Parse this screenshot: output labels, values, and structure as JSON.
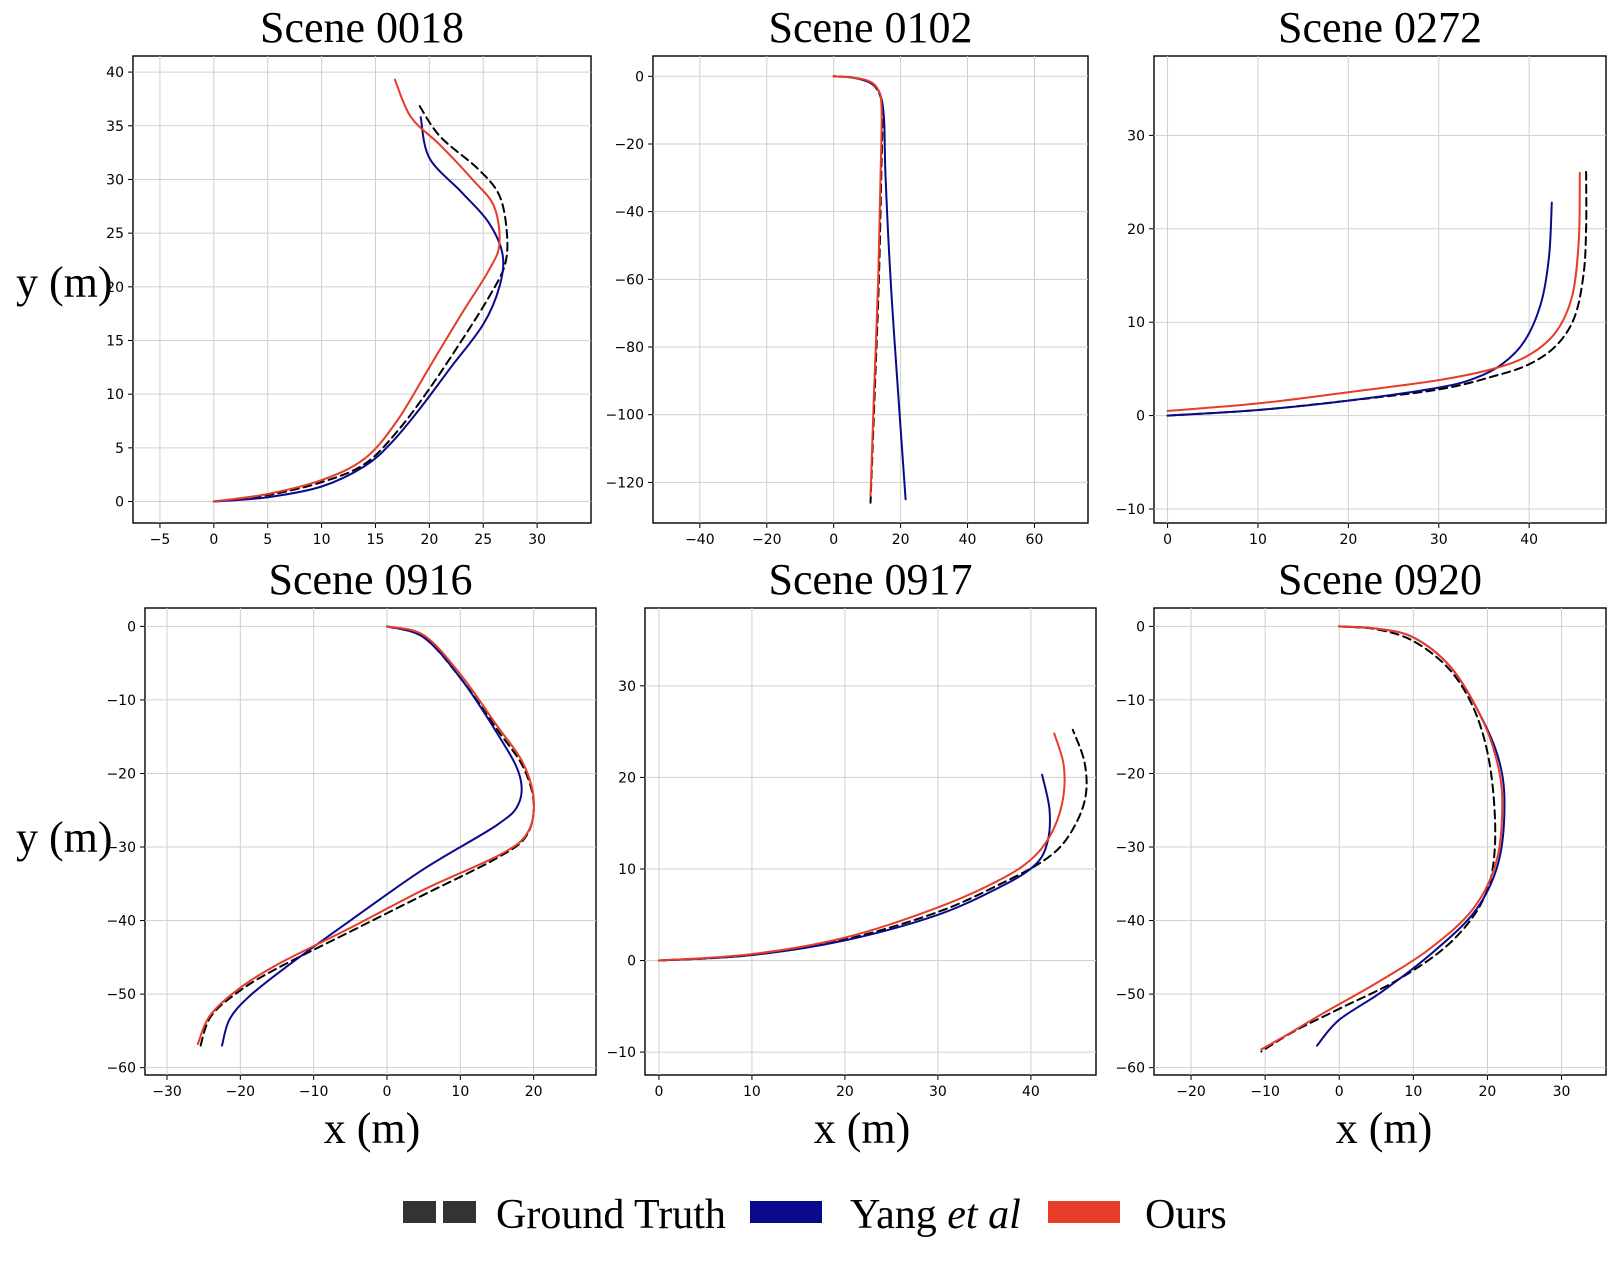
{
  "figure": {
    "xlabel": "x (m)",
    "ylabel": "y (m)",
    "legend": {
      "placement": "bottom-center",
      "items": [
        {
          "label": "Ground Truth",
          "style": "dashed",
          "color": "#000000"
        },
        {
          "label_main": "Yang ",
          "label_italic": "et al",
          "style": "solid",
          "color": "#0a0a8c"
        },
        {
          "label": "Ours",
          "style": "solid",
          "color": "#e63c28"
        }
      ]
    },
    "colors": {
      "ground_truth": "#000000",
      "yang": "#0a0a8c",
      "ours": "#e63c28",
      "grid": "#cfcfcf"
    }
  },
  "chart_data": [
    {
      "type": "line",
      "title": "Scene 0018",
      "xlim": [
        -7.5,
        35
      ],
      "ylim": [
        -2,
        41.5
      ],
      "xticks": [
        -5,
        0,
        5,
        10,
        15,
        20,
        25,
        30
      ],
      "yticks": [
        0,
        5,
        10,
        15,
        20,
        25,
        30,
        35,
        40
      ],
      "grid": true,
      "series": [
        {
          "key": "ground_truth",
          "points": [
            [
              0,
              0
            ],
            [
              5,
              0.6
            ],
            [
              10,
              1.8
            ],
            [
              14,
              3.5
            ],
            [
              17,
              6.5
            ],
            [
              20,
              10.5
            ],
            [
              23,
              15
            ],
            [
              25.5,
              19
            ],
            [
              27,
              22
            ],
            [
              27.2,
              25
            ],
            [
              26.5,
              28.5
            ],
            [
              24.5,
              31
            ],
            [
              21,
              34
            ],
            [
              19,
              37
            ]
          ]
        },
        {
          "key": "yang",
          "points": [
            [
              0,
              0
            ],
            [
              5,
              0.4
            ],
            [
              10,
              1.4
            ],
            [
              14,
              3.3
            ],
            [
              16.5,
              5.5
            ],
            [
              19,
              8.5
            ],
            [
              22,
              12.5
            ],
            [
              25,
              16.5
            ],
            [
              26.5,
              20
            ],
            [
              26.8,
              23
            ],
            [
              25.5,
              26
            ],
            [
              23,
              28.8
            ],
            [
              20,
              32
            ],
            [
              19.2,
              35.8
            ]
          ]
        },
        {
          "key": "ours",
          "points": [
            [
              0,
              0
            ],
            [
              5,
              0.7
            ],
            [
              10,
              2
            ],
            [
              14,
              4
            ],
            [
              17,
              7.5
            ],
            [
              20,
              12.5
            ],
            [
              23,
              17.5
            ],
            [
              25.5,
              21.5
            ],
            [
              26.5,
              24
            ],
            [
              26,
              27.5
            ],
            [
              24,
              30
            ],
            [
              21,
              33.2
            ],
            [
              18.3,
              35.8
            ],
            [
              16.8,
              39.3
            ]
          ]
        }
      ]
    },
    {
      "type": "line",
      "title": "Scene 0102",
      "xlim": [
        -54,
        76
      ],
      "ylim": [
        -132,
        6
      ],
      "xticks": [
        -40,
        -20,
        0,
        20,
        40,
        60
      ],
      "yticks": [
        0,
        -20,
        -40,
        -60,
        -80,
        -100,
        -120
      ],
      "grid": true,
      "series": [
        {
          "key": "ground_truth",
          "points": [
            [
              0,
              0
            ],
            [
              5,
              -0.3
            ],
            [
              10,
              -1.5
            ],
            [
              13,
              -4
            ],
            [
              14.5,
              -10
            ],
            [
              14.2,
              -30
            ],
            [
              13.5,
              -60
            ],
            [
              12.2,
              -95
            ],
            [
              11,
              -126
            ]
          ]
        },
        {
          "key": "yang",
          "points": [
            [
              0,
              0
            ],
            [
              5,
              -0.3
            ],
            [
              10,
              -1.5
            ],
            [
              13.5,
              -4.5
            ],
            [
              15,
              -12
            ],
            [
              15.5,
              -30
            ],
            [
              17,
              -60
            ],
            [
              19,
              -90
            ],
            [
              21.5,
              -125
            ]
          ]
        },
        {
          "key": "ours",
          "points": [
            [
              0,
              0
            ],
            [
              5,
              -0.3
            ],
            [
              10,
              -1.2
            ],
            [
              13,
              -3.5
            ],
            [
              14.3,
              -9
            ],
            [
              14,
              -30
            ],
            [
              13.3,
              -60
            ],
            [
              12,
              -95
            ],
            [
              11,
              -124
            ]
          ]
        }
      ]
    },
    {
      "type": "line",
      "title": "Scene 0272",
      "xlim": [
        -1.5,
        48.5
      ],
      "ylim": [
        -11.5,
        38.5
      ],
      "xticks": [
        0,
        10,
        20,
        30,
        40
      ],
      "yticks": [
        -10,
        0,
        10,
        20,
        30
      ],
      "grid": true,
      "series": [
        {
          "key": "ground_truth",
          "points": [
            [
              0,
              0
            ],
            [
              10,
              0.6
            ],
            [
              20,
              1.6
            ],
            [
              30,
              2.8
            ],
            [
              36,
              4.2
            ],
            [
              40,
              5.5
            ],
            [
              43,
              7.5
            ],
            [
              45,
              10.5
            ],
            [
              46,
              15
            ],
            [
              46.3,
              20
            ],
            [
              46.3,
              26.3
            ]
          ]
        },
        {
          "key": "yang",
          "points": [
            [
              0,
              0
            ],
            [
              10,
              0.6
            ],
            [
              20,
              1.6
            ],
            [
              30,
              3
            ],
            [
              34,
              4
            ],
            [
              37,
              5.5
            ],
            [
              39.5,
              8
            ],
            [
              41.3,
              12
            ],
            [
              42.2,
              17
            ],
            [
              42.5,
              22.8
            ]
          ]
        },
        {
          "key": "ours",
          "points": [
            [
              0,
              0.5
            ],
            [
              10,
              1.3
            ],
            [
              20,
              2.5
            ],
            [
              30,
              3.8
            ],
            [
              36,
              5
            ],
            [
              40,
              6.5
            ],
            [
              43,
              9
            ],
            [
              44.8,
              13
            ],
            [
              45.5,
              19
            ],
            [
              45.6,
              26
            ]
          ]
        }
      ]
    },
    {
      "type": "line",
      "title": "Scene 0916",
      "xlim": [
        -33,
        28.5
      ],
      "ylim": [
        -61,
        2.5
      ],
      "xticks": [
        -30,
        -20,
        -10,
        0,
        10,
        20
      ],
      "yticks": [
        0,
        -10,
        -20,
        -30,
        -40,
        -50,
        -60
      ],
      "grid": true,
      "series": [
        {
          "key": "ground_truth",
          "points": [
            [
              0,
              0
            ],
            [
              5,
              -1.5
            ],
            [
              10,
              -7
            ],
            [
              15,
              -14
            ],
            [
              18.5,
              -19
            ],
            [
              20,
              -24
            ],
            [
              19,
              -28.5
            ],
            [
              15,
              -31.5
            ],
            [
              5,
              -36.5
            ],
            [
              -5,
              -41.5
            ],
            [
              -15,
              -46.5
            ],
            [
              -20,
              -49.5
            ],
            [
              -24,
              -53
            ],
            [
              -25.5,
              -57.3
            ]
          ]
        },
        {
          "key": "yang",
          "points": [
            [
              0,
              0
            ],
            [
              5,
              -1.5
            ],
            [
              10,
              -7
            ],
            [
              15,
              -14.5
            ],
            [
              18,
              -20
            ],
            [
              18,
              -24
            ],
            [
              15,
              -27
            ],
            [
              5,
              -33
            ],
            [
              -5,
              -40
            ],
            [
              -14,
              -46.5
            ],
            [
              -19,
              -50.5
            ],
            [
              -21.5,
              -53.5
            ],
            [
              -22.5,
              -57
            ]
          ]
        },
        {
          "key": "ours",
          "points": [
            [
              0,
              0
            ],
            [
              5,
              -1.2
            ],
            [
              10,
              -6.5
            ],
            [
              15,
              -13.5
            ],
            [
              18.5,
              -18.5
            ],
            [
              20,
              -23.5
            ],
            [
              19.2,
              -28
            ],
            [
              15.5,
              -31
            ],
            [
              5,
              -35.8
            ],
            [
              -5,
              -41
            ],
            [
              -15,
              -46
            ],
            [
              -20.5,
              -49.5
            ],
            [
              -24.2,
              -53
            ],
            [
              -25.8,
              -56.8
            ]
          ]
        }
      ]
    },
    {
      "type": "line",
      "title": "Scene 0917",
      "xlim": [
        -1.5,
        47
      ],
      "ylim": [
        -12.5,
        38.5
      ],
      "xticks": [
        0,
        10,
        20,
        30,
        40
      ],
      "yticks": [
        -10,
        0,
        10,
        20,
        30
      ],
      "grid": true,
      "series": [
        {
          "key": "ground_truth",
          "points": [
            [
              0,
              0
            ],
            [
              10,
              0.6
            ],
            [
              20,
              2.3
            ],
            [
              30,
              5.3
            ],
            [
              37,
              8.5
            ],
            [
              41.5,
              11
            ],
            [
              44,
              13.5
            ],
            [
              45.8,
              17.5
            ],
            [
              45.8,
              21.5
            ],
            [
              44.5,
              25.2
            ]
          ]
        },
        {
          "key": "yang",
          "points": [
            [
              0,
              0
            ],
            [
              10,
              0.6
            ],
            [
              20,
              2.2
            ],
            [
              30,
              5
            ],
            [
              37,
              8.2
            ],
            [
              40.5,
              10.5
            ],
            [
              41.8,
              13
            ],
            [
              42,
              16.5
            ],
            [
              41.2,
              20.3
            ]
          ]
        },
        {
          "key": "ours",
          "points": [
            [
              0,
              0
            ],
            [
              10,
              0.7
            ],
            [
              20,
              2.5
            ],
            [
              30,
              5.8
            ],
            [
              37,
              9
            ],
            [
              40.5,
              11.5
            ],
            [
              42.5,
              14.5
            ],
            [
              43.5,
              18
            ],
            [
              43.5,
              21.5
            ],
            [
              42.5,
              24.8
            ]
          ]
        }
      ]
    },
    {
      "type": "line",
      "title": "Scene 0920",
      "xlim": [
        -25,
        36
      ],
      "ylim": [
        -61,
        2.5
      ],
      "xticks": [
        -20,
        -10,
        0,
        10,
        20,
        30
      ],
      "yticks": [
        0,
        -10,
        -20,
        -30,
        -40,
        -50,
        -60
      ],
      "grid": true,
      "series": [
        {
          "key": "ground_truth",
          "points": [
            [
              0,
              0
            ],
            [
              5,
              -0.4
            ],
            [
              10,
              -2
            ],
            [
              15,
              -6
            ],
            [
              18.5,
              -12
            ],
            [
              20.5,
              -20
            ],
            [
              21,
              -30
            ],
            [
              19.5,
              -37
            ],
            [
              15,
              -43
            ],
            [
              8,
              -48
            ],
            [
              0,
              -52
            ],
            [
              -6,
              -55
            ],
            [
              -10.5,
              -57.8
            ]
          ]
        },
        {
          "key": "yang",
          "points": [
            [
              0,
              0
            ],
            [
              5,
              -0.3
            ],
            [
              10,
              -1.5
            ],
            [
              15,
              -5.5
            ],
            [
              19,
              -12
            ],
            [
              21.5,
              -18
            ],
            [
              22.3,
              -24
            ],
            [
              21.5,
              -32
            ],
            [
              18.5,
              -38.5
            ],
            [
              13,
              -44
            ],
            [
              6,
              -49.5
            ],
            [
              0,
              -53.5
            ],
            [
              -3,
              -57
            ]
          ]
        },
        {
          "key": "ours",
          "points": [
            [
              0,
              0
            ],
            [
              5,
              -0.3
            ],
            [
              10,
              -1.5
            ],
            [
              15,
              -5.5
            ],
            [
              19,
              -12
            ],
            [
              21.2,
              -18
            ],
            [
              22,
              -24
            ],
            [
              21.2,
              -32
            ],
            [
              18,
              -38.5
            ],
            [
              12,
              -44
            ],
            [
              5,
              -48.5
            ],
            [
              -2,
              -52.5
            ],
            [
              -7,
              -55.5
            ],
            [
              -10.5,
              -57.5
            ]
          ]
        }
      ]
    }
  ]
}
